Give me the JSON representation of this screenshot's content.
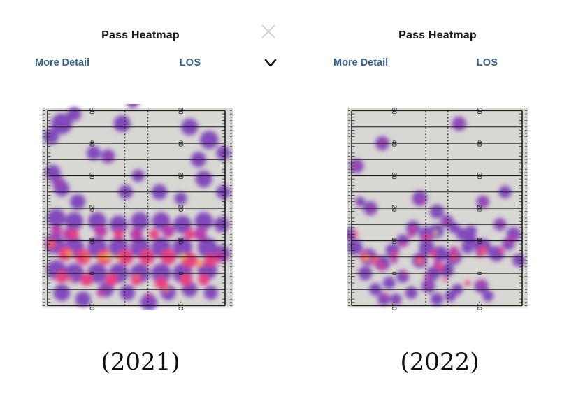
{
  "panels": [
    {
      "title": "Pass Heatmap",
      "more_detail_label": "More Detail",
      "dropdown_value": "LOS",
      "caption": "(2021)",
      "has_close_icon": true,
      "has_chevron": true
    },
    {
      "title": "Pass Heatmap",
      "more_detail_label": "More Detail",
      "dropdown_value": "LOS",
      "caption": "(2022)",
      "has_close_icon": false,
      "has_chevron": false
    }
  ],
  "colors": {
    "link_blue": "#33608c",
    "title_text": "#16181c",
    "close_icon_gray": "#c9cdd3",
    "chevron_black": "#141414",
    "field_bg": "#d8d7d4",
    "grid_line": "#1c1c1c",
    "heat": {
      "purple": "#8149bb",
      "magenta": "#b83da8",
      "pink": "#e7417f",
      "orange": "#f8813e",
      "amber": "#f9ad3d",
      "lime": "#d6e75c"
    }
  },
  "chart_data": [
    {
      "type": "heatmap",
      "title": "Pass Heatmap",
      "caption": "(2021)",
      "orientation": "vertical football field, line of scrimmage relative yards",
      "axis": {
        "yard_max": 50,
        "yard_min": -10,
        "line_step": 5,
        "labels": [
          50,
          40,
          30,
          20,
          10,
          0,
          -10
        ],
        "label_columns_pct": [
          25,
          75
        ],
        "hash_columns_pct": [
          43.5,
          56.5
        ],
        "grid": "solid horizontal lines every 5 yards, dotted hash columns, 1-yard tick marks on sidelines"
      },
      "legend": "density: purple = low, magenta/pink = medium, orange = high, yellow-green = highest",
      "blobs": {
        "purple": [
          [
            8,
            46,
            15
          ],
          [
            2,
            42,
            11
          ],
          [
            15,
            49,
            10
          ],
          [
            42,
            46,
            12
          ],
          [
            48,
            53,
            10
          ],
          [
            80,
            45,
            12
          ],
          [
            91,
            41,
            13
          ],
          [
            85,
            35,
            11
          ],
          [
            99,
            37,
            10
          ],
          [
            26,
            37,
            10
          ],
          [
            34,
            36,
            10
          ],
          [
            3,
            31,
            11
          ],
          [
            8,
            26,
            11
          ],
          [
            6,
            28,
            9
          ],
          [
            51,
            30,
            9
          ],
          [
            88,
            29,
            12
          ],
          [
            99,
            25,
            10
          ],
          [
            17,
            22,
            11
          ],
          [
            44,
            25,
            10
          ],
          [
            63,
            25,
            11
          ],
          [
            75,
            23,
            9
          ],
          [
            98,
            15,
            11
          ],
          [
            5,
            17,
            13
          ],
          [
            15,
            16,
            13
          ],
          [
            28,
            16,
            13
          ],
          [
            40,
            15,
            13
          ],
          [
            52,
            16,
            13
          ],
          [
            64,
            16,
            13
          ],
          [
            76,
            15,
            13
          ],
          [
            88,
            16,
            13
          ],
          [
            4,
            9,
            14
          ],
          [
            15,
            8,
            14
          ],
          [
            28,
            8,
            14
          ],
          [
            40,
            8,
            14
          ],
          [
            52,
            8,
            14
          ],
          [
            64,
            8,
            14
          ],
          [
            76,
            8,
            14
          ],
          [
            90,
            8,
            14
          ],
          [
            98,
            6,
            12
          ],
          [
            5,
            1,
            14
          ],
          [
            15,
            0,
            14
          ],
          [
            28,
            0,
            14
          ],
          [
            40,
            0,
            14
          ],
          [
            52,
            0,
            14
          ],
          [
            64,
            0,
            14
          ],
          [
            76,
            0,
            14
          ],
          [
            90,
            1,
            14
          ],
          [
            8,
            -6,
            12
          ],
          [
            20,
            -8,
            11
          ],
          [
            33,
            -5,
            11
          ],
          [
            45,
            -6,
            11
          ],
          [
            57,
            -9,
            12
          ],
          [
            68,
            -6,
            11
          ],
          [
            80,
            -5,
            11
          ],
          [
            92,
            -6,
            10
          ]
        ],
        "magenta": [
          [
            12,
            12,
            9
          ],
          [
            30,
            13,
            9
          ],
          [
            50,
            12,
            9
          ],
          [
            68,
            13,
            9
          ],
          [
            86,
            12,
            9
          ],
          [
            5,
            13,
            8
          ],
          [
            97,
            5,
            8
          ],
          [
            6,
            28,
            4
          ],
          [
            34,
            36,
            3
          ],
          [
            30,
            -6,
            6
          ],
          [
            57,
            -7,
            5
          ]
        ],
        "pink": [
          [
            10,
            6,
            10
          ],
          [
            20,
            5,
            11
          ],
          [
            32,
            5,
            11
          ],
          [
            44,
            5,
            11
          ],
          [
            56,
            5,
            11
          ],
          [
            68,
            5,
            11
          ],
          [
            80,
            4,
            11
          ],
          [
            92,
            4,
            9
          ],
          [
            8,
            -1,
            9
          ],
          [
            22,
            -2,
            9
          ],
          [
            36,
            -2,
            9
          ],
          [
            50,
            -2,
            8
          ],
          [
            64,
            -3,
            9
          ],
          [
            78,
            -2,
            9
          ],
          [
            88,
            -2,
            8
          ],
          [
            15,
            12,
            7
          ],
          [
            40,
            12,
            7
          ],
          [
            60,
            12,
            7
          ],
          [
            80,
            12,
            7
          ],
          [
            2,
            9,
            7
          ]
        ],
        "orange": [
          [
            12,
            6,
            5
          ],
          [
            30,
            5,
            5
          ],
          [
            40,
            5,
            4
          ],
          [
            76,
            5,
            4
          ],
          [
            86,
            3,
            5
          ],
          [
            67,
            -5,
            4
          ],
          [
            2,
            9,
            3
          ],
          [
            22,
            5,
            4
          ],
          [
            50,
            -1,
            3
          ],
          [
            13,
            -2,
            3
          ]
        ],
        "amber": [
          [
            33,
            5,
            4
          ],
          [
            13,
            6,
            3
          ],
          [
            86,
            3,
            3
          ],
          [
            77,
            5,
            3
          ]
        ],
        "lime": [
          [
            35,
            5.5,
            3
          ],
          [
            76,
            5.5,
            2.5
          ]
        ]
      }
    },
    {
      "type": "heatmap",
      "title": "Pass Heatmap",
      "caption": "(2022)",
      "orientation": "vertical football field, line of scrimmage relative yards",
      "axis": {
        "yard_max": 50,
        "yard_min": -10,
        "line_step": 5,
        "labels": [
          50,
          40,
          30,
          20,
          10,
          0,
          -10
        ],
        "label_columns_pct": [
          25,
          75
        ],
        "hash_columns_pct": [
          43.5,
          56.5
        ],
        "grid": "solid horizontal lines every 5 yards, dotted hash columns, 1-yard tick marks on sidelines"
      },
      "legend": "density: purple = low, magenta/pink = medium, orange = high, yellow-green = highest",
      "blobs": {
        "purple": [
          [
            63,
            46,
            10
          ],
          [
            18,
            40,
            10
          ],
          [
            3,
            33,
            10
          ],
          [
            11,
            20,
            10
          ],
          [
            5,
            22,
            7
          ],
          [
            77,
            22,
            9
          ],
          [
            90,
            25,
            9
          ],
          [
            40,
            23,
            11
          ],
          [
            50,
            19,
            10
          ],
          [
            56,
            16,
            9
          ],
          [
            87,
            15,
            9
          ],
          [
            -1,
            12,
            9
          ],
          [
            2,
            8,
            11
          ],
          [
            10,
            5,
            12
          ],
          [
            18,
            3,
            11
          ],
          [
            8,
            0,
            10
          ],
          [
            24,
            7,
            10
          ],
          [
            30,
            10,
            9
          ],
          [
            22,
            -3,
            9
          ],
          [
            14,
            -5,
            9
          ],
          [
            36,
            14,
            10
          ],
          [
            44,
            12,
            11
          ],
          [
            50,
            13,
            10
          ],
          [
            44,
            8,
            11
          ],
          [
            52,
            6,
            11
          ],
          [
            60,
            5,
            11
          ],
          [
            40,
            4,
            11
          ],
          [
            48,
            0,
            10
          ],
          [
            56,
            1,
            10
          ],
          [
            45,
            -4,
            10
          ],
          [
            50,
            -8,
            9
          ],
          [
            19,
            -8,
            9
          ],
          [
            30,
            -1,
            9
          ],
          [
            35,
            -6,
            9
          ],
          [
            26,
            -8,
            8
          ],
          [
            77,
            8,
            12
          ],
          [
            85,
            6,
            11
          ],
          [
            95,
            12,
            10
          ],
          [
            92,
            9,
            9
          ],
          [
            70,
            10,
            9
          ],
          [
            65,
            12,
            9
          ],
          [
            76,
            -4,
            10
          ],
          [
            80,
            -7,
            8
          ],
          [
            70,
            13,
            8
          ],
          [
            98,
            4,
            9
          ],
          [
            60,
            14,
            8
          ],
          [
            68,
            8,
            9
          ],
          [
            62,
            -5,
            8
          ],
          [
            58,
            -7,
            8
          ]
        ],
        "magenta": [
          [
            63,
            46,
            4
          ],
          [
            18,
            40,
            4
          ],
          [
            3,
            33,
            4
          ],
          [
            12,
            20,
            4
          ],
          [
            77,
            22,
            4
          ],
          [
            41,
            22,
            4
          ],
          [
            56,
            16,
            4
          ],
          [
            30,
            9,
            5
          ],
          [
            60,
            7,
            6
          ],
          [
            75,
            6,
            5
          ],
          [
            92,
            10,
            4
          ],
          [
            45,
            -4,
            4
          ],
          [
            76,
            -3,
            5
          ],
          [
            20,
            -7,
            4
          ],
          [
            87,
            15,
            3
          ],
          [
            35,
            12,
            5
          ],
          [
            50,
            3,
            5
          ],
          [
            25,
            4,
            5
          ],
          [
            95,
            11,
            4
          ],
          [
            44,
            -1,
            4
          ]
        ],
        "pink": [
          [
            8,
            5,
            7
          ],
          [
            14,
            4,
            6
          ],
          [
            44,
            11,
            5
          ],
          [
            40,
            4,
            6
          ],
          [
            48,
            6,
            5
          ],
          [
            36,
            14,
            3
          ],
          [
            52,
            2,
            5
          ],
          [
            60,
            5,
            5
          ],
          [
            77,
            7,
            6
          ],
          [
            88,
            7,
            4
          ],
          [
            2,
            12,
            4
          ],
          [
            25,
            6,
            4
          ],
          [
            68,
            -3,
            4
          ],
          [
            31,
            0,
            3
          ],
          [
            18,
            2,
            4
          ],
          [
            55,
            -2,
            3
          ]
        ],
        "orange": [
          [
            9,
            4.7,
            4
          ],
          [
            13,
            4.3,
            3
          ],
          [
            49,
            12.3,
            3
          ],
          [
            40,
            3.7,
            3
          ],
          [
            61,
            5,
            2.5
          ],
          [
            78,
            6.5,
            2.5
          ]
        ],
        "amber": [
          [
            9,
            4.7,
            2.5
          ],
          [
            49,
            12.4,
            2
          ]
        ],
        "lime": [
          [
            8.5,
            4.8,
            2
          ],
          [
            49.5,
            12.6,
            2
          ]
        ]
      }
    }
  ]
}
